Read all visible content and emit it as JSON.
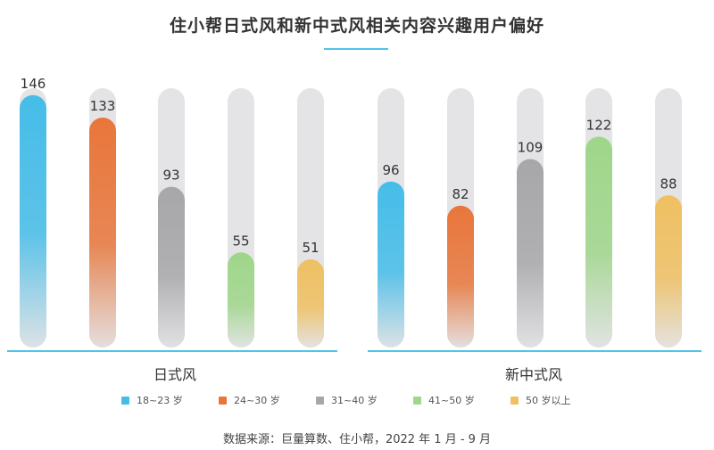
{
  "title": "住小帮日式风和新中式风相关内容兴趣用户偏好",
  "source": "数据来源：巨量算数、住小帮，2022 年 1 月 - 9 月",
  "colors": {
    "accent_line": "#4fc3e8",
    "track": "#e4e4e6",
    "age_colors": [
      "#45bde8",
      "#e8763b",
      "#a7a7aa",
      "#9fd68a",
      "#efc062"
    ]
  },
  "chart_data": [
    {
      "type": "bar",
      "title": "日式风",
      "categories": [
        "18~23 岁",
        "24~30 岁",
        "31~40 岁",
        "41~50 岁",
        "50 岁以上"
      ],
      "values": [
        146,
        133,
        93,
        55,
        51
      ],
      "ylim": [
        0,
        150
      ]
    },
    {
      "type": "bar",
      "title": "新中式风",
      "categories": [
        "18~23 岁",
        "24~30 岁",
        "31~40 岁",
        "41~50 岁",
        "50 岁以上"
      ],
      "values": [
        96,
        82,
        109,
        122,
        88
      ],
      "ylim": [
        0,
        150
      ]
    }
  ],
  "legend": [
    "18~23 岁",
    "24~30 岁",
    "31~40 岁",
    "41~50 岁",
    "50 岁以上"
  ]
}
